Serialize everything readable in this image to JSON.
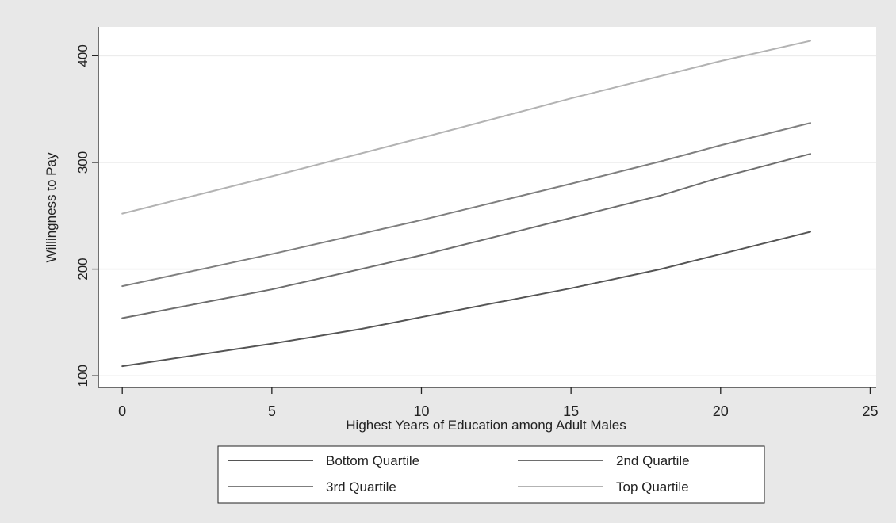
{
  "chart_data": {
    "type": "line",
    "title": "",
    "xlabel": "Highest Years of Education among Adult Males",
    "ylabel": "Willingness to Pay",
    "xlim": [
      -0.8,
      25.2
    ],
    "ylim": [
      89,
      427
    ],
    "x_ticks": [
      0,
      5,
      10,
      15,
      20,
      25
    ],
    "y_ticks": [
      100,
      200,
      300,
      400
    ],
    "grid": "horizontal",
    "legend_position": "bottom",
    "colors": {
      "outer_background": "#e8e8e8",
      "plot_background": "#ffffff",
      "gridline": "#ececec",
      "axis": "#222222"
    },
    "series": [
      {
        "name": "Bottom Quartile",
        "color": "#555555",
        "x": [
          0,
          5,
          8,
          10,
          15,
          18,
          20,
          23
        ],
        "y": [
          109,
          130,
          144,
          155,
          182,
          200,
          214,
          235
        ]
      },
      {
        "name": "2nd Quartile",
        "color": "#6e6e6e",
        "x": [
          0,
          5,
          10,
          15,
          18,
          20,
          23
        ],
        "y": [
          154,
          181,
          213,
          248,
          269,
          286,
          308
        ]
      },
      {
        "name": "3rd Quartile",
        "color": "#7f7f7f",
        "x": [
          0,
          5,
          10,
          15,
          18,
          20,
          23
        ],
        "y": [
          184,
          214,
          246,
          280,
          301,
          316,
          337
        ]
      },
      {
        "name": "Top Quartile",
        "color": "#b3b3b3",
        "x": [
          0,
          5,
          10,
          15,
          20,
          23
        ],
        "y": [
          252,
          287,
          323,
          360,
          395,
          414
        ]
      }
    ]
  }
}
